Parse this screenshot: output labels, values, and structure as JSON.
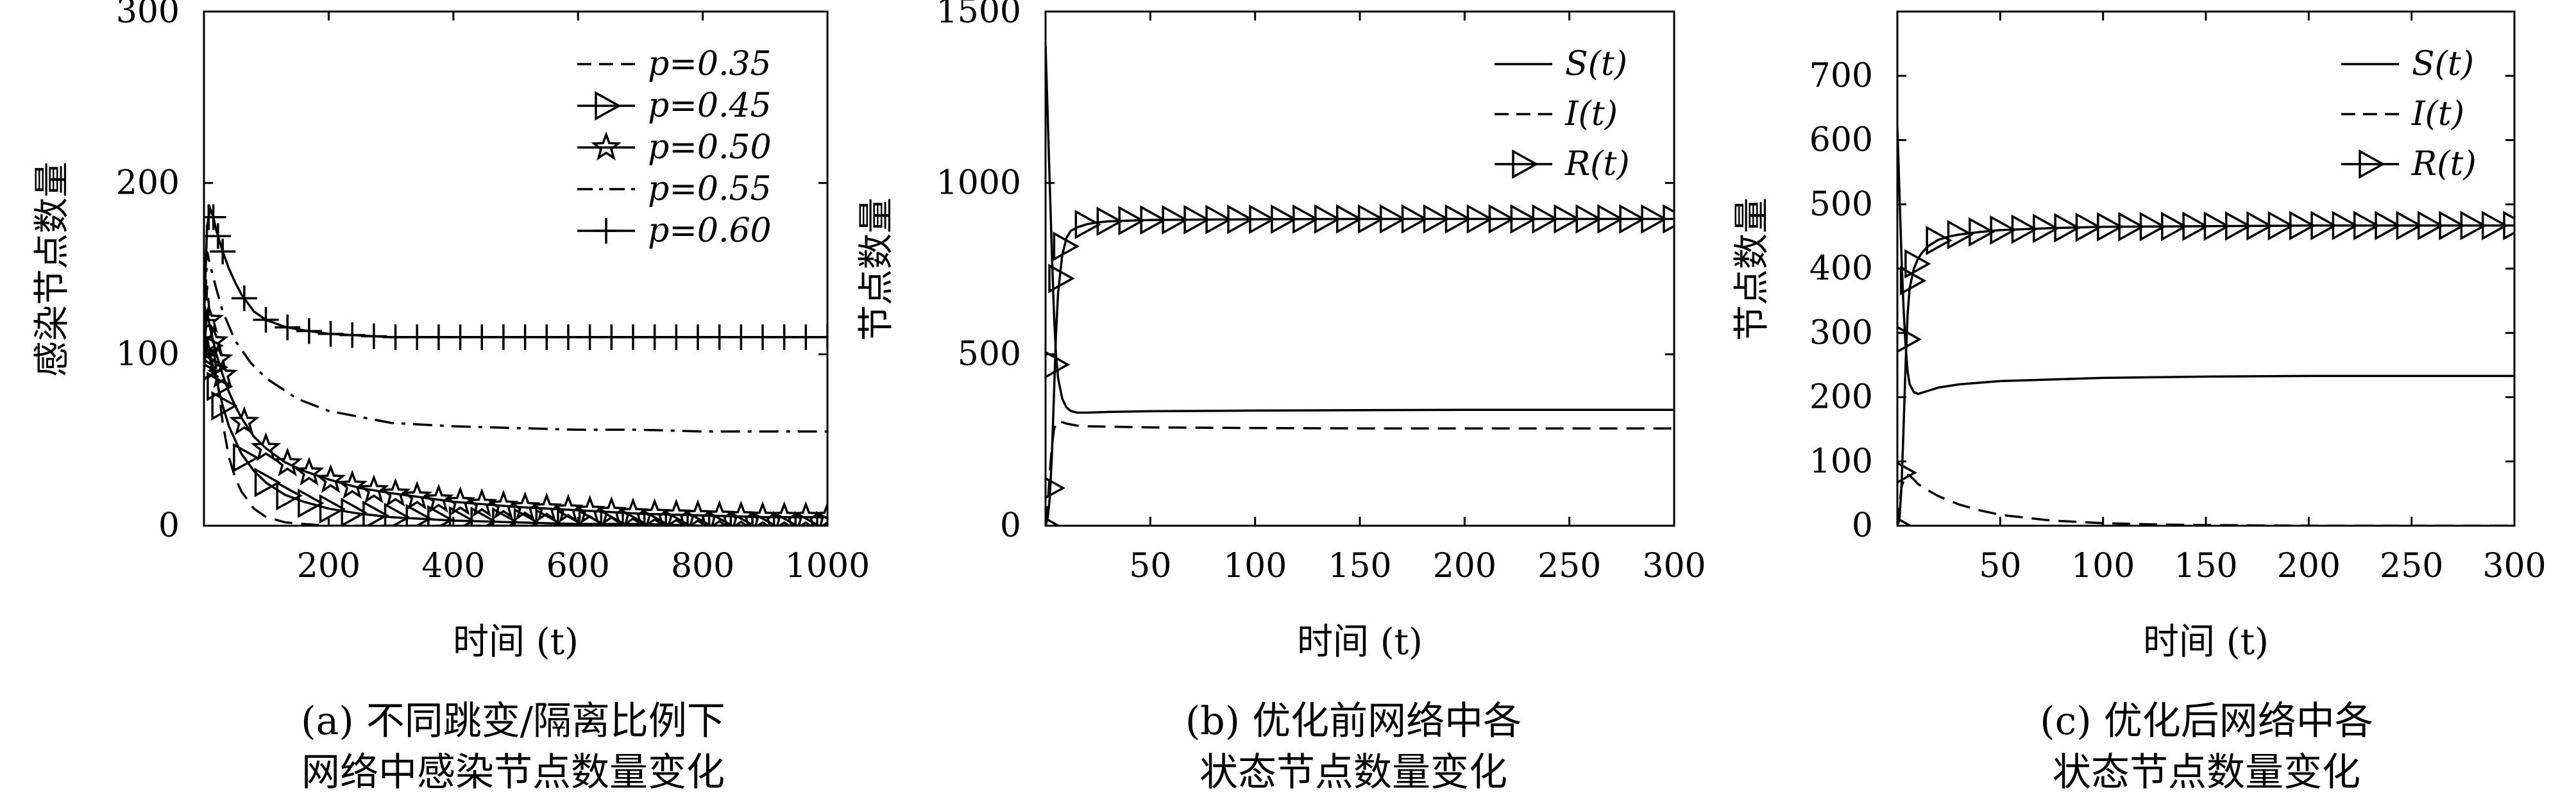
{
  "chart_data": [
    {
      "type": "line",
      "ylabel": "感染节点数量",
      "xlabel": "时间 (t)",
      "caption": [
        "(a) 不同跳变/隔离比例下",
        "网络中感染节点数量变化"
      ],
      "xlim": [
        0,
        1000
      ],
      "ylim": [
        0,
        300
      ],
      "xticks": [
        200,
        400,
        600,
        800,
        1000
      ],
      "yticks": [
        0,
        100,
        200,
        300
      ],
      "legend_position": "top-right",
      "series": [
        {
          "name": "p=0.35",
          "style": "dashed",
          "marker": "none",
          "x": [
            0,
            5,
            10,
            20,
            30,
            40,
            50,
            60,
            80,
            100,
            130,
            160,
            200,
            300,
            400,
            600,
            800,
            1000
          ],
          "y": [
            100,
            140,
            120,
            90,
            60,
            40,
            28,
            20,
            10,
            5,
            2,
            1,
            0,
            0,
            0,
            0,
            0,
            0
          ]
        },
        {
          "name": "p=0.45",
          "style": "solid",
          "marker": "triangle",
          "x": [
            0,
            5,
            10,
            20,
            30,
            40,
            50,
            60,
            80,
            100,
            130,
            160,
            200,
            250,
            300,
            400,
            500,
            600,
            700,
            800,
            900,
            1000
          ],
          "y": [
            90,
            110,
            100,
            85,
            70,
            58,
            50,
            42,
            32,
            25,
            18,
            14,
            10,
            7,
            5,
            3,
            2,
            1,
            1,
            0,
            0,
            0
          ]
        },
        {
          "name": "p=0.50",
          "style": "solid",
          "marker": "star",
          "x": [
            0,
            5,
            10,
            20,
            30,
            40,
            50,
            60,
            80,
            100,
            130,
            160,
            200,
            250,
            300,
            400,
            500,
            600,
            700,
            800,
            900,
            1000
          ],
          "y": [
            100,
            125,
            115,
            100,
            88,
            78,
            70,
            63,
            52,
            45,
            37,
            32,
            27,
            22,
            19,
            14,
            11,
            9,
            7,
            6,
            5,
            5
          ]
        },
        {
          "name": "p=0.55",
          "style": "dashdot",
          "marker": "none",
          "x": [
            0,
            5,
            10,
            20,
            30,
            50,
            75,
            100,
            150,
            200,
            300,
            400,
            500,
            600,
            700,
            800,
            900,
            1000
          ],
          "y": [
            110,
            160,
            152,
            138,
            125,
            108,
            95,
            86,
            74,
            67,
            60,
            58,
            57,
            56,
            56,
            55,
            55,
            55
          ]
        },
        {
          "name": "p=0.60",
          "style": "solid",
          "marker": "plus",
          "x": [
            0,
            5,
            10,
            15,
            20,
            30,
            40,
            50,
            60,
            80,
            100,
            130,
            160,
            200,
            250,
            300,
            400,
            500,
            600,
            700,
            800,
            900,
            1000
          ],
          "y": [
            120,
            175,
            185,
            180,
            172,
            160,
            150,
            142,
            135,
            125,
            120,
            116,
            114,
            112,
            111,
            110,
            110,
            110,
            110,
            110,
            110,
            110,
            110
          ]
        }
      ]
    },
    {
      "type": "line",
      "ylabel": "节点数量",
      "xlabel": "时间 (t)",
      "caption": [
        "(b) 优化前网络中各",
        "状态节点数量变化"
      ],
      "xlim": [
        0,
        300
      ],
      "ylim": [
        0,
        1500
      ],
      "xticks": [
        50,
        100,
        150,
        200,
        250,
        300
      ],
      "yticks": [
        0,
        500,
        1000,
        1500
      ],
      "legend_position": "top-right",
      "series": [
        {
          "name": "S(t)",
          "style": "solid",
          "marker": "none",
          "x": [
            0,
            1,
            2,
            3,
            4,
            5,
            6,
            8,
            10,
            12,
            15,
            20,
            30,
            50,
            100,
            150,
            200,
            250,
            300
          ],
          "y": [
            1400,
            1200,
            1000,
            800,
            620,
            500,
            430,
            370,
            345,
            335,
            330,
            330,
            332,
            334,
            336,
            337,
            338,
            338,
            338
          ]
        },
        {
          "name": "I(t)",
          "style": "dashed",
          "marker": "none",
          "x": [
            0,
            1,
            2,
            3,
            4,
            5,
            6,
            8,
            10,
            15,
            20,
            50,
            100,
            150,
            200,
            250,
            300
          ],
          "y": [
            5,
            60,
            150,
            230,
            280,
            300,
            305,
            302,
            298,
            292,
            290,
            287,
            285,
            284,
            284,
            284,
            284
          ]
        },
        {
          "name": "R(t)",
          "style": "solid",
          "marker": "triangle",
          "x": [
            0,
            1,
            2,
            3,
            4,
            5,
            6,
            8,
            10,
            12,
            15,
            20,
            25,
            30,
            40,
            50,
            75,
            100,
            150,
            200,
            250,
            300
          ],
          "y": [
            0,
            20,
            80,
            200,
            380,
            560,
            680,
            790,
            840,
            860,
            870,
            880,
            885,
            888,
            890,
            892,
            893,
            894,
            895,
            895,
            895,
            895
          ]
        }
      ]
    },
    {
      "type": "line",
      "ylabel": "节点数量",
      "xlabel": "时间 (t)",
      "caption": [
        "(c) 优化后网络中各",
        "状态节点数量变化"
      ],
      "xlim": [
        0,
        300
      ],
      "ylim": [
        0,
        800
      ],
      "xticks": [
        50,
        100,
        150,
        200,
        250,
        300
      ],
      "yticks": [
        0,
        100,
        200,
        300,
        400,
        500,
        600,
        700
      ],
      "legend_position": "top-right",
      "series": [
        {
          "name": "S(t)",
          "style": "solid",
          "marker": "none",
          "x": [
            0,
            1,
            2,
            3,
            4,
            5,
            6,
            8,
            10,
            12,
            15,
            20,
            30,
            50,
            100,
            150,
            200,
            250,
            300
          ],
          "y": [
            620,
            520,
            420,
            340,
            280,
            240,
            220,
            208,
            205,
            207,
            210,
            215,
            220,
            225,
            230,
            232,
            233,
            233,
            233
          ]
        },
        {
          "name": "I(t)",
          "style": "dashed",
          "marker": "none",
          "x": [
            0,
            2,
            4,
            6,
            8,
            10,
            15,
            20,
            30,
            40,
            50,
            75,
            100,
            125,
            150,
            200,
            250,
            300
          ],
          "y": [
            0,
            60,
            80,
            78,
            72,
            65,
            55,
            46,
            33,
            24,
            17,
            8,
            4,
            2,
            1,
            0,
            0,
            0
          ]
        },
        {
          "name": "R(t)",
          "style": "solid",
          "marker": "triangle",
          "x": [
            0,
            1,
            2,
            3,
            4,
            5,
            6,
            8,
            10,
            12,
            15,
            20,
            25,
            30,
            40,
            50,
            75,
            100,
            150,
            200,
            250,
            300
          ],
          "y": [
            0,
            10,
            60,
            150,
            250,
            330,
            370,
            400,
            415,
            425,
            435,
            445,
            450,
            453,
            457,
            460,
            463,
            465,
            466,
            467,
            467,
            467
          ]
        }
      ]
    }
  ]
}
